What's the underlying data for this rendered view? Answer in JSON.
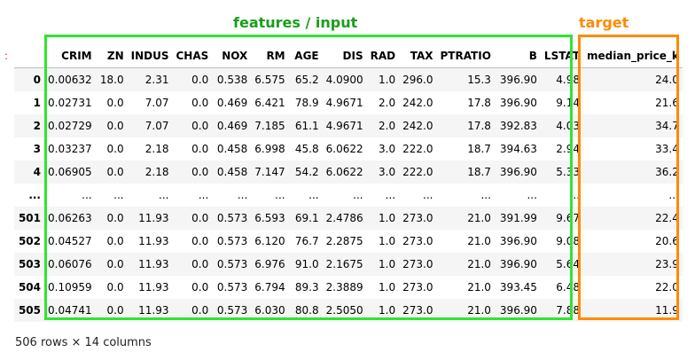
{
  "annotations": {
    "features_label": "features / input",
    "target_label": "target",
    "prompt_marker": ":"
  },
  "table": {
    "columns": [
      "CRIM",
      "ZN",
      "INDUS",
      "CHAS",
      "NOX",
      "RM",
      "AGE",
      "DIS",
      "RAD",
      "TAX",
      "PTRATIO",
      "B",
      "LSTAT",
      "median_price_k"
    ],
    "rows": [
      {
        "index": "0",
        "cells": [
          "0.00632",
          "18.0",
          "2.31",
          "0.0",
          "0.538",
          "6.575",
          "65.2",
          "4.0900",
          "1.0",
          "296.0",
          "15.3",
          "396.90",
          "4.98",
          "24.0"
        ]
      },
      {
        "index": "1",
        "cells": [
          "0.02731",
          "0.0",
          "7.07",
          "0.0",
          "0.469",
          "6.421",
          "78.9",
          "4.9671",
          "2.0",
          "242.0",
          "17.8",
          "396.90",
          "9.14",
          "21.6"
        ]
      },
      {
        "index": "2",
        "cells": [
          "0.02729",
          "0.0",
          "7.07",
          "0.0",
          "0.469",
          "7.185",
          "61.1",
          "4.9671",
          "2.0",
          "242.0",
          "17.8",
          "392.83",
          "4.03",
          "34.7"
        ]
      },
      {
        "index": "3",
        "cells": [
          "0.03237",
          "0.0",
          "2.18",
          "0.0",
          "0.458",
          "6.998",
          "45.8",
          "6.0622",
          "3.0",
          "222.0",
          "18.7",
          "394.63",
          "2.94",
          "33.4"
        ]
      },
      {
        "index": "4",
        "cells": [
          "0.06905",
          "0.0",
          "2.18",
          "0.0",
          "0.458",
          "7.147",
          "54.2",
          "6.0622",
          "3.0",
          "222.0",
          "18.7",
          "396.90",
          "5.33",
          "36.2"
        ]
      },
      {
        "index": "...",
        "cells": [
          "...",
          "...",
          "...",
          "...",
          "...",
          "...",
          "...",
          "...",
          "...",
          "...",
          "...",
          "...",
          "...",
          "..."
        ]
      },
      {
        "index": "501",
        "cells": [
          "0.06263",
          "0.0",
          "11.93",
          "0.0",
          "0.573",
          "6.593",
          "69.1",
          "2.4786",
          "1.0",
          "273.0",
          "21.0",
          "391.99",
          "9.67",
          "22.4"
        ]
      },
      {
        "index": "502",
        "cells": [
          "0.04527",
          "0.0",
          "11.93",
          "0.0",
          "0.573",
          "6.120",
          "76.7",
          "2.2875",
          "1.0",
          "273.0",
          "21.0",
          "396.90",
          "9.08",
          "20.6"
        ]
      },
      {
        "index": "503",
        "cells": [
          "0.06076",
          "0.0",
          "11.93",
          "0.0",
          "0.573",
          "6.976",
          "91.0",
          "2.1675",
          "1.0",
          "273.0",
          "21.0",
          "396.90",
          "5.64",
          "23.9"
        ]
      },
      {
        "index": "504",
        "cells": [
          "0.10959",
          "0.0",
          "11.93",
          "0.0",
          "0.573",
          "6.794",
          "89.3",
          "2.3889",
          "1.0",
          "273.0",
          "21.0",
          "393.45",
          "6.48",
          "22.0"
        ]
      },
      {
        "index": "505",
        "cells": [
          "0.04741",
          "0.0",
          "11.93",
          "0.0",
          "0.573",
          "6.030",
          "80.8",
          "2.5050",
          "1.0",
          "273.0",
          "21.0",
          "396.90",
          "7.88",
          "11.9"
        ]
      }
    ],
    "shape_text": "506 rows × 14 columns"
  }
}
